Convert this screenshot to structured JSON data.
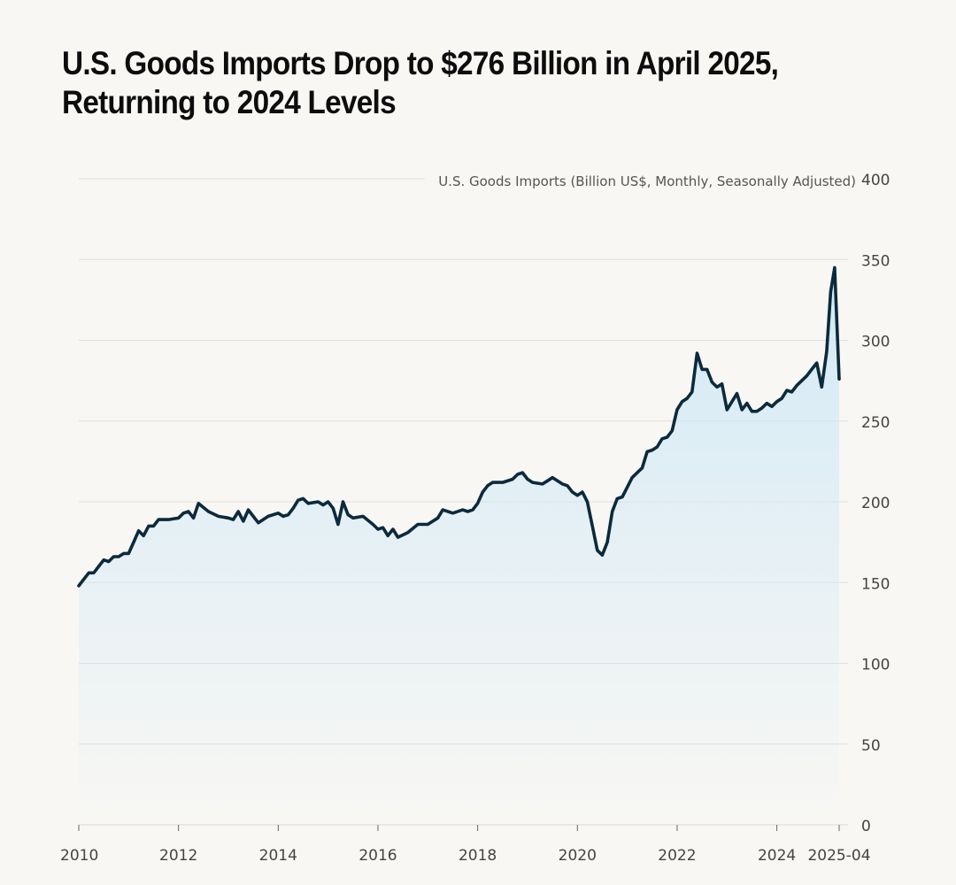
{
  "title": {
    "line1": "U.S. Goods Imports Drop to $276 Billion in April 2025,",
    "line2": "Returning to 2024 Levels"
  },
  "colors": {
    "background": "#f8f7f4",
    "line": "#0c2a3c",
    "fill_top": "#cfe8f6",
    "grid": "#e0dfdb"
  },
  "chart_data": {
    "type": "area",
    "title": "U.S. Goods Imports Drop to $276 Billion in April 2025, Returning to 2024 Levels",
    "ylabel": "U.S. Goods Imports (Billion US$, Monthly, Seasonally Adjusted)",
    "xlabel": "",
    "xlim": [
      2010.0,
      2025.25
    ],
    "ylim": [
      0,
      400
    ],
    "grid": true,
    "y_ticks": [
      "0",
      "50",
      "100",
      "150",
      "200",
      "250",
      "300",
      "350",
      "400"
    ],
    "x_ticks": [
      "2010",
      "2012",
      "2014",
      "2016",
      "2018",
      "2020",
      "2022",
      "2024",
      "2025-04"
    ],
    "series": [
      {
        "name": "U.S. Goods Imports",
        "x": [
          2010.0,
          2010.1,
          2010.2,
          2010.3,
          2010.4,
          2010.5,
          2010.6,
          2010.7,
          2010.8,
          2010.9,
          2011.0,
          2011.1,
          2011.2,
          2011.3,
          2011.4,
          2011.5,
          2011.6,
          2011.8,
          2012.0,
          2012.1,
          2012.2,
          2012.3,
          2012.4,
          2012.6,
          2012.8,
          2013.0,
          2013.1,
          2013.2,
          2013.3,
          2013.4,
          2013.6,
          2013.8,
          2014.0,
          2014.1,
          2014.2,
          2014.3,
          2014.4,
          2014.5,
          2014.6,
          2014.8,
          2014.9,
          2015.0,
          2015.1,
          2015.2,
          2015.3,
          2015.4,
          2015.5,
          2015.7,
          2015.9,
          2016.0,
          2016.1,
          2016.2,
          2016.3,
          2016.4,
          2016.6,
          2016.8,
          2017.0,
          2017.2,
          2017.3,
          2017.5,
          2017.7,
          2017.8,
          2017.9,
          2018.0,
          2018.1,
          2018.2,
          2018.3,
          2018.5,
          2018.7,
          2018.8,
          2018.9,
          2019.0,
          2019.1,
          2019.3,
          2019.4,
          2019.5,
          2019.7,
          2019.8,
          2019.9,
          2020.0,
          2020.1,
          2020.2,
          2020.3,
          2020.4,
          2020.5,
          2020.6,
          2020.7,
          2020.8,
          2020.9,
          2021.0,
          2021.1,
          2021.2,
          2021.3,
          2021.4,
          2021.5,
          2021.6,
          2021.7,
          2021.8,
          2021.9,
          2022.0,
          2022.1,
          2022.2,
          2022.3,
          2022.4,
          2022.5,
          2022.6,
          2022.7,
          2022.8,
          2022.9,
          2023.0,
          2023.1,
          2023.2,
          2023.3,
          2023.4,
          2023.5,
          2023.6,
          2023.7,
          2023.8,
          2023.9,
          2024.0,
          2024.1,
          2024.2,
          2024.3,
          2024.4,
          2024.5,
          2024.6,
          2024.7,
          2024.8,
          2024.9,
          2025.0,
          2025.08,
          2025.16,
          2025.25
        ],
        "values": [
          148,
          152,
          156,
          156,
          160,
          164,
          163,
          166,
          166,
          168,
          168,
          175,
          182,
          179,
          185,
          185,
          189,
          189,
          190,
          193,
          194,
          190,
          199,
          194,
          191,
          190,
          189,
          194,
          188,
          195,
          187,
          191,
          193,
          191,
          192,
          196,
          201,
          202,
          199,
          200,
          198,
          200,
          196,
          186,
          200,
          192,
          190,
          191,
          186,
          183,
          184,
          179,
          183,
          178,
          181,
          186,
          186,
          190,
          195,
          193,
          195,
          194,
          195,
          199,
          206,
          210,
          212,
          212,
          214,
          217,
          218,
          214,
          212,
          211,
          213,
          215,
          211,
          210,
          206,
          204,
          206,
          200,
          185,
          170,
          167,
          175,
          194,
          202,
          203,
          209,
          215,
          218,
          221,
          231,
          232,
          234,
          239,
          240,
          244,
          257,
          262,
          264,
          268,
          292,
          282,
          282,
          274,
          271,
          273,
          257,
          262,
          267,
          257,
          261,
          256,
          256,
          258,
          261,
          259,
          262,
          264,
          269,
          268,
          272,
          275,
          278,
          282,
          286,
          271,
          293,
          330,
          345,
          276
        ]
      }
    ]
  }
}
